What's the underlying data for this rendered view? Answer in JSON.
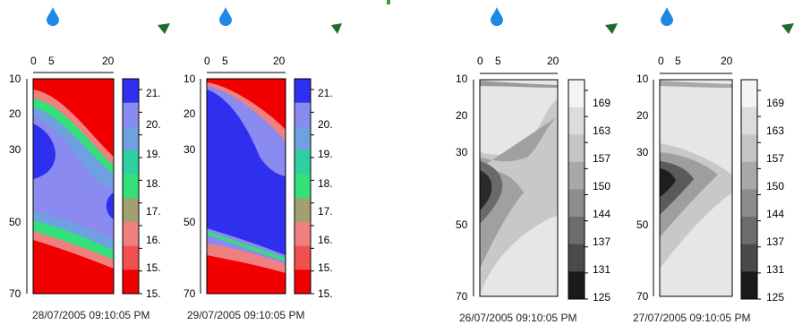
{
  "panels": [
    {
      "colorbar_style": "color",
      "x_ticks": [
        "0",
        "5",
        "20"
      ],
      "y_ticks": [
        "10",
        "20",
        "30",
        "50",
        "70"
      ],
      "colorbar_ticks": [
        "21.",
        "20.",
        "19.",
        "18.",
        "17.",
        "16.",
        "15.",
        "15."
      ],
      "timestamp": "28/07/2005 09:10:05 PM"
    },
    {
      "colorbar_style": "color",
      "x_ticks": [
        "0",
        "5",
        "20"
      ],
      "y_ticks": [
        "10",
        "20",
        "30",
        "50",
        "70"
      ],
      "colorbar_ticks": [
        "21.",
        "20.",
        "19.",
        "18.",
        "17.",
        "16.",
        "15.",
        "15."
      ],
      "timestamp": "29/07/2005 09:10:05 PM"
    },
    {
      "colorbar_style": "gray",
      "x_ticks": [
        "0",
        "5",
        "20"
      ],
      "y_ticks": [
        "10",
        "20",
        "30",
        "50",
        "70"
      ],
      "colorbar_ticks": [
        "169",
        "163",
        "157",
        "150",
        "144",
        "137",
        "131",
        "125"
      ],
      "timestamp": "26/07/2005 09:10:05 PM"
    },
    {
      "colorbar_style": "gray",
      "x_ticks": [
        "0",
        "5",
        "20"
      ],
      "y_ticks": [
        "10",
        "20",
        "30",
        "50",
        "70"
      ],
      "colorbar_ticks": [
        "169",
        "163",
        "157",
        "150",
        "144",
        "137",
        "131",
        "125"
      ],
      "timestamp": "27/07/2005 09:10:05 PM"
    }
  ],
  "colors": {
    "color_scale": [
      "#2f2ff0",
      "#8a8af0",
      "#6fa0e0",
      "#2fd0a0",
      "#33e07a",
      "#a0a070",
      "#f08080",
      "#f25050",
      "#f20000"
    ],
    "gray_scale": [
      "#f4f4f4",
      "#dcdcdc",
      "#c4c4c4",
      "#a8a8a8",
      "#8c8c8c",
      "#6c6c6c",
      "#4a4a4a",
      "#1a1a1a"
    ],
    "drop": "#1e88e5",
    "leaf": "#1d6b2a"
  },
  "icons": {
    "drop": "water-drop-icon",
    "leaf": "leaf-icon"
  }
}
